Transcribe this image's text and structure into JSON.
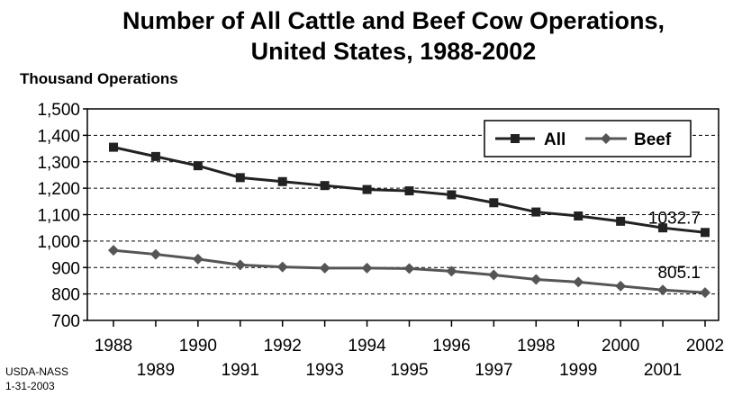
{
  "chart_data": {
    "type": "line",
    "title": "Number of All Cattle and Beef Cow Operations,",
    "subtitle": "United States, 1988-2002",
    "ylabel": "Thousand Operations",
    "xlabel": "",
    "ylim": [
      700,
      1500
    ],
    "yticks": [
      "700",
      "800",
      "900",
      "1,000",
      "1,100",
      "1,200",
      "1,300",
      "1,400",
      "1,500"
    ],
    "x": [
      1988,
      1989,
      1990,
      1991,
      1992,
      1993,
      1994,
      1995,
      1996,
      1997,
      1998,
      1999,
      2000,
      2001,
      2002
    ],
    "xticks": [
      "1988",
      "1989",
      "1990",
      "1991",
      "1992",
      "1993",
      "1994",
      "1995",
      "1996",
      "1997",
      "1998",
      "1999",
      "2000",
      "2001",
      "2002"
    ],
    "grid": "horizontal dashed",
    "legend_position": "top-right",
    "series": [
      {
        "name": "All",
        "marker": "square",
        "color": "#222222",
        "values": [
          1355,
          1320,
          1285,
          1240,
          1225,
          1210,
          1195,
          1190,
          1175,
          1145,
          1110,
          1095,
          1075,
          1050,
          1032.7
        ]
      },
      {
        "name": "Beef",
        "marker": "diamond",
        "color": "#555555",
        "values": [
          965,
          950,
          932,
          910,
          902,
          898,
          898,
          896,
          886,
          872,
          855,
          845,
          830,
          815,
          805.1
        ]
      }
    ],
    "annotations": [
      "1032.7",
      "805.1"
    ]
  },
  "source": {
    "line1": "USDA-NASS",
    "line2": "1-31-2003"
  }
}
